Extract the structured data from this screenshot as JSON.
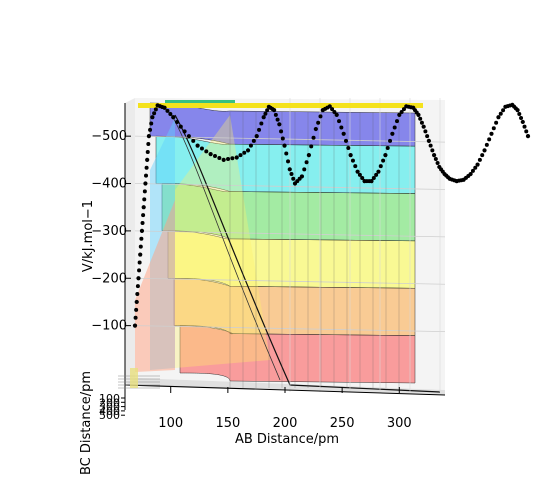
{
  "chart_data": {
    "type": "3d-surface",
    "xlabel": "AB Distance/pm",
    "ylabel": "BC Distance/pm",
    "zlabel": "V/kJ.mol−1",
    "x_ticks": [
      100,
      150,
      200,
      250,
      300
    ],
    "y_ticks": [
      100,
      200,
      300,
      400,
      500
    ],
    "z_ticks": [
      -500,
      -400,
      -300,
      -200,
      -100
    ],
    "z_band_boundaries": [
      -570,
      -500,
      -400,
      -300,
      -200,
      -100,
      0
    ],
    "band_colors": [
      "#0000e0",
      "#00e8e8",
      "#40e040",
      "#ffff20",
      "#ff9a20",
      "#ff3030"
    ],
    "surface_alpha": 0.45,
    "trajectory": {
      "marker": "dot",
      "color": "#000000",
      "points": [
        [
          78,
          -100
        ],
        [
          80,
          -150
        ],
        [
          82,
          -200
        ],
        [
          84,
          -250
        ],
        [
          86,
          -300
        ],
        [
          88,
          -350
        ],
        [
          90,
          -400
        ],
        [
          92,
          -450
        ],
        [
          94,
          -500
        ],
        [
          98,
          -540
        ],
        [
          104,
          -565
        ],
        [
          112,
          -560
        ],
        [
          122,
          -540
        ],
        [
          135,
          -510
        ],
        [
          150,
          -480
        ],
        [
          165,
          -462
        ],
        [
          180,
          -450
        ],
        [
          195,
          -455
        ],
        [
          208,
          -470
        ],
        [
          218,
          -500
        ],
        [
          226,
          -540
        ],
        [
          232,
          -562
        ],
        [
          238,
          -555
        ],
        [
          244,
          -525
        ],
        [
          250,
          -480
        ],
        [
          256,
          -430
        ],
        [
          262,
          -400
        ],
        [
          270,
          -415
        ],
        [
          278,
          -460
        ],
        [
          286,
          -515
        ],
        [
          294,
          -555
        ],
        [
          302,
          -563
        ],
        [
          310,
          -545
        ],
        [
          318,
          -505
        ],
        [
          326,
          -460
        ],
        [
          334,
          -425
        ],
        [
          342,
          -405
        ],
        [
          350,
          -405
        ],
        [
          358,
          -425
        ],
        [
          366,
          -460
        ],
        [
          374,
          -505
        ],
        [
          382,
          -545
        ],
        [
          390,
          -563
        ],
        [
          398,
          -560
        ],
        [
          404,
          -545
        ],
        [
          410,
          -520
        ],
        [
          416,
          -490
        ],
        [
          422,
          -460
        ],
        [
          428,
          -435
        ],
        [
          434,
          -420
        ],
        [
          440,
          -410
        ],
        [
          448,
          -405
        ],
        [
          456,
          -408
        ],
        [
          464,
          -420
        ],
        [
          472,
          -440
        ],
        [
          480,
          -470
        ],
        [
          488,
          -505
        ],
        [
          496,
          -540
        ],
        [
          504,
          -562
        ],
        [
          512,
          -566
        ],
        [
          518,
          -555
        ],
        [
          524,
          -530
        ],
        [
          530,
          -500
        ]
      ]
    },
    "grid": true,
    "view": "3d"
  }
}
